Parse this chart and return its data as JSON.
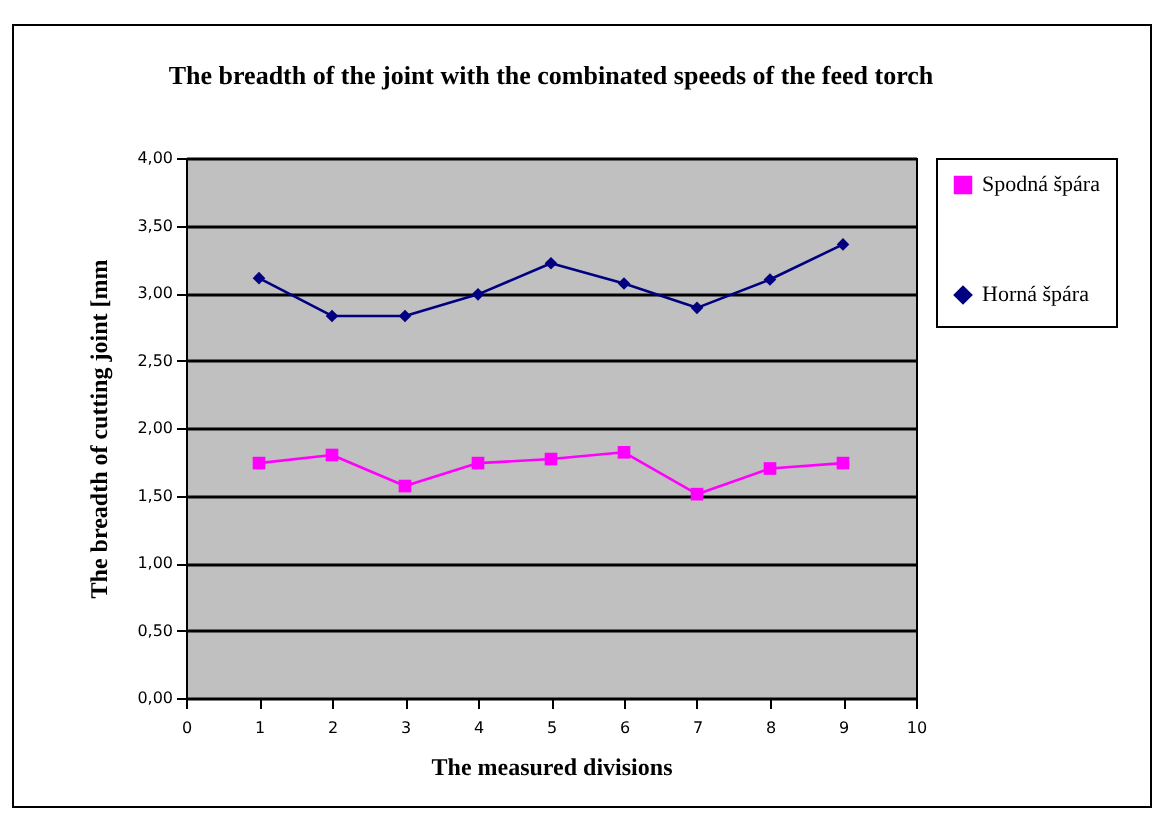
{
  "chart_data": {
    "type": "line",
    "title": "The breadth of the joint with the combinated speeds of the feed torch",
    "xlabel": "The measured divisions",
    "ylabel": "The breadth of cutting joint [mm",
    "x": [
      1,
      2,
      3,
      4,
      5,
      6,
      7,
      8,
      9
    ],
    "series": [
      {
        "name": "Spodná špára",
        "color": "#ff00ff",
        "marker": "square",
        "values": [
          1.74,
          1.8,
          1.57,
          1.74,
          1.77,
          1.82,
          1.51,
          1.7,
          1.74
        ]
      },
      {
        "name": "Horná špára",
        "color": "#000080",
        "marker": "diamond",
        "values": [
          3.11,
          2.83,
          2.83,
          2.99,
          3.22,
          3.07,
          2.89,
          3.1,
          3.36
        ]
      }
    ],
    "xlim": [
      0,
      10
    ],
    "xticks": [
      0,
      1,
      2,
      3,
      4,
      5,
      6,
      7,
      8,
      9,
      10
    ],
    "ylim": [
      0,
      4
    ],
    "yticks": [
      {
        "value": 0,
        "label": "0,00"
      },
      {
        "value": 0.5,
        "label": "0,50"
      },
      {
        "value": 1,
        "label": "1,00"
      },
      {
        "value": 1.5,
        "label": "1,50"
      },
      {
        "value": 2,
        "label": "2,00"
      },
      {
        "value": 2.5,
        "label": "2,50"
      },
      {
        "value": 3,
        "label": "3,00"
      },
      {
        "value": 3.5,
        "label": "3,50"
      },
      {
        "value": 4,
        "label": "4,00"
      }
    ],
    "grid": "y",
    "legend": "right"
  }
}
